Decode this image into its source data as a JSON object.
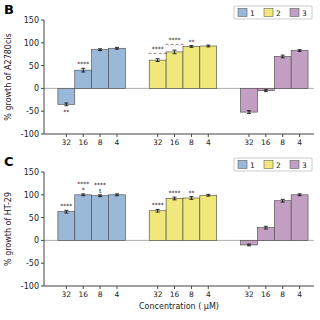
{
  "chart_data": [
    {
      "type": "bar",
      "title": "B",
      "y_label": "% growth of A2780cis",
      "categories": [
        "32",
        "16",
        "8",
        "4"
      ],
      "series": [
        {
          "name": "1",
          "color": "#9ab8d8",
          "values": [
            -35,
            40,
            85,
            88
          ],
          "errors": [
            3,
            4,
            2,
            2
          ],
          "annotations": [
            "**",
            "****",
            null,
            null
          ]
        },
        {
          "name": "2",
          "color": "#f0e87a",
          "values": [
            62,
            80,
            92,
            93
          ],
          "errors": [
            3,
            4,
            2,
            2
          ],
          "annotations": [
            "****\n^^^^",
            "****\n^^^^",
            "**",
            null
          ]
        },
        {
          "name": "3",
          "color": "#c49fc4",
          "values": [
            -52,
            -5,
            70,
            83
          ],
          "errors": [
            3,
            2,
            3,
            2
          ]
        }
      ],
      "ylim": [
        -100,
        150
      ],
      "yticks": [
        -100,
        -50,
        0,
        50,
        100,
        150
      ],
      "legend": "upper right"
    },
    {
      "type": "bar",
      "title": "C",
      "y_label": "% growth of HT-29",
      "x_label": "Concentration ( μM)",
      "categories": [
        "32",
        "16",
        "8",
        "4"
      ],
      "series": [
        {
          "name": "1",
          "color": "#9ab8d8",
          "values": [
            63,
            100,
            98,
            100
          ],
          "errors": [
            3,
            2,
            2,
            2
          ],
          "annotations": [
            "****",
            "****\n*",
            "****\nt",
            null
          ]
        },
        {
          "name": "2",
          "color": "#f0e87a",
          "values": [
            65,
            92,
            93,
            99
          ],
          "errors": [
            3,
            3,
            3,
            2
          ],
          "annotations": [
            "****",
            "****",
            "**",
            null
          ]
        },
        {
          "name": "3",
          "color": "#c49fc4",
          "values": [
            -10,
            28,
            87,
            100
          ],
          "errors": [
            2,
            3,
            3,
            2
          ]
        }
      ],
      "ylim": [
        -100,
        150
      ],
      "yticks": [
        -100,
        -50,
        0,
        50,
        100,
        150
      ],
      "legend": "upper right"
    }
  ]
}
